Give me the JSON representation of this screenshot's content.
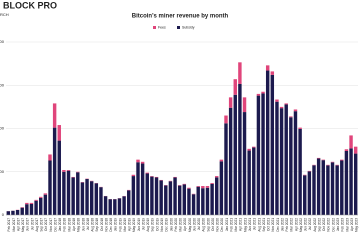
{
  "brand": {
    "logo": "BLOCK PRO",
    "subtitle": "RCH"
  },
  "chart_data": {
    "type": "stacked-bar",
    "title": "Bitcoin's miner revenue by month",
    "categories": [
      "Feb 2017",
      "Mar 2017",
      "Apr 2017",
      "May 2017",
      "Jun 2017",
      "Jul 2017",
      "Aug 2017",
      "Sep 2017",
      "Oct 2017",
      "Nov 2017",
      "Dec 2017",
      "Jan 2018",
      "Feb 2018",
      "Mar 2018",
      "Apr 2018",
      "May 2018",
      "Jun 2018",
      "Jul 2018",
      "Aug 2018",
      "Sep 2018",
      "Oct 2018",
      "Nov 2018",
      "Dec 2018",
      "Jan 2019",
      "Feb 2019",
      "Mar 2019",
      "Apr 2019",
      "May 2019",
      "Jun 2019",
      "Jul 2019",
      "Aug 2019",
      "Sep 2019",
      "Oct 2019",
      "Nov 2019",
      "Dec 2019",
      "Jan 2020",
      "Feb 2020",
      "Mar 2020",
      "Apr 2020",
      "May 2020",
      "Jun 2020",
      "Jul 2020",
      "Aug 2020",
      "Sep 2020",
      "Oct 2020",
      "Nov 2020",
      "Dec 2020",
      "Jan 2021",
      "Feb 2021",
      "Mar 2021",
      "Apr 2021",
      "May 2021",
      "Jun 2021",
      "Jul 2021",
      "Aug 2021",
      "Sep 2021",
      "Oct 2021",
      "Nov 2021",
      "Dec 2021",
      "Jan 2022",
      "Feb 2022",
      "Mar 2022",
      "Apr 2022",
      "May 2022",
      "Jun 2022",
      "Jul 2022",
      "Aug 2022",
      "Sep 2022",
      "Oct 2022",
      "Nov 2022",
      "Dec 2022",
      "Jan 2023",
      "Feb 2023",
      "Mar 2023",
      "Apr 2023",
      "May 2023"
    ],
    "series": [
      {
        "name": "Subsidy",
        "color": "#1c1a4e",
        "values": [
          44,
          49,
          58,
          85,
          125,
          128,
          165,
          198,
          235,
          630,
          1010,
          860,
          500,
          512,
          434,
          494,
          376,
          416,
          391,
          367,
          322,
          218,
          183,
          183,
          193,
          217,
          285,
          450,
          610,
          595,
          480,
          444,
          434,
          400,
          341,
          390,
          434,
          340,
          354,
          305,
          240,
          327,
          310,
          315,
          360,
          435,
          620,
          1060,
          1240,
          1390,
          1515,
          1190,
          745,
          780,
          1380,
          1405,
          1670,
          1620,
          1310,
          1235,
          1278,
          1130,
          1200,
          995,
          459,
          504,
          575,
          654,
          634,
          574,
          609,
          574,
          630,
          740,
          770,
          710
        ]
      },
      {
        "name": "Fees",
        "color": "#e0457b",
        "values": [
          1,
          1,
          2,
          5,
          15,
          12,
          10,
          12,
          15,
          70,
          280,
          180,
          20,
          8,
          6,
          6,
          4,
          4,
          4,
          3,
          3,
          2,
          2,
          2,
          2,
          3,
          5,
          15,
          30,
          20,
          10,
          6,
          6,
          5,
          4,
          5,
          6,
          5,
          6,
          10,
          5,
          8,
          25,
          20,
          10,
          15,
          20,
          90,
          120,
          180,
          250,
          170,
          20,
          10,
          20,
          20,
          60,
          40,
          25,
          15,
          12,
          10,
          20,
          15,
          6,
          6,
          5,
          6,
          6,
          6,
          6,
          6,
          10,
          20,
          150,
          80
        ]
      }
    ],
    "ylim": [
      0,
      2000
    ],
    "yticks": [
      0,
      500,
      1000,
      1500,
      2000
    ],
    "grid": true
  }
}
